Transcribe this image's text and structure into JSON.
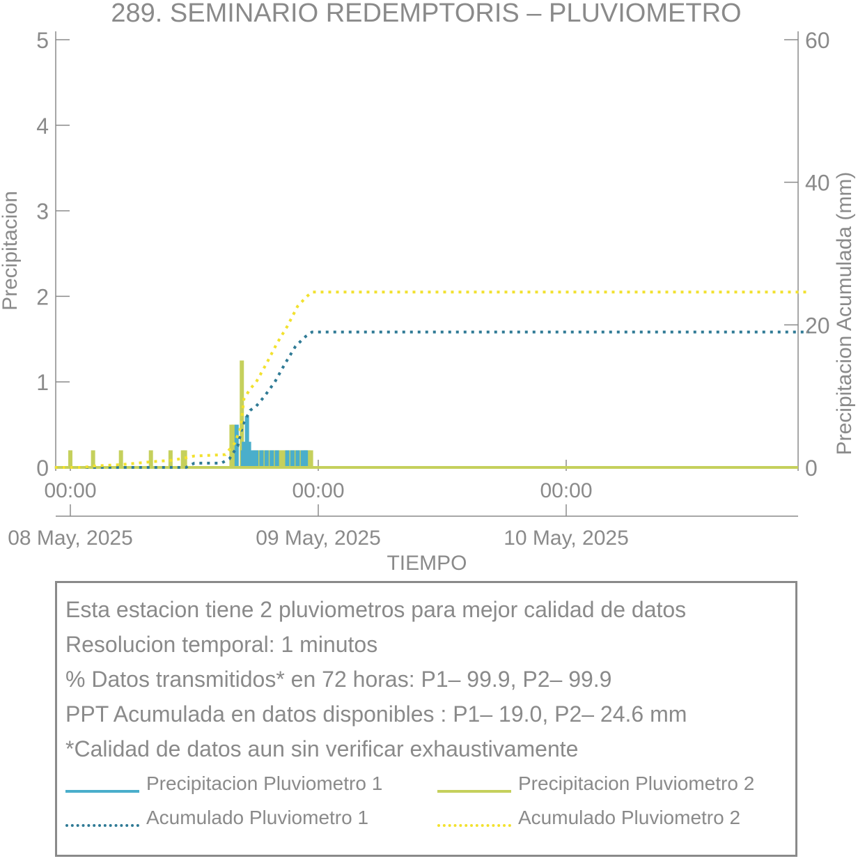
{
  "colors": {
    "p1": "#4aaecb",
    "p2": "#c5d05c",
    "acc1": "#2f7a95",
    "acc2": "#f2e12e",
    "axis": "#8a8a8a"
  },
  "chart_data": {
    "type": "bar",
    "title": "289. SEMINARIO REDEMPTORIS – PLUVIOMETRO",
    "xlabel": "TIEMPO",
    "ylabel": "Precipitacion",
    "y2label": "Precipitacion Acumulada (mm)",
    "x_range_hours": [
      0,
      72
    ],
    "ylim": [
      0,
      5
    ],
    "y2lim": [
      0,
      60
    ],
    "y_ticks": [
      0,
      1,
      2,
      3,
      4,
      5
    ],
    "y2_ticks": [
      0,
      20,
      40,
      60
    ],
    "x_ticks": [
      {
        "hour": 0,
        "time": "00:00",
        "date": "08 May, 2025"
      },
      {
        "hour": 24,
        "time": "00:00",
        "date": "09 May, 2025"
      },
      {
        "hour": 48,
        "time": "00:00",
        "date": "10 May, 2025"
      }
    ],
    "series": [
      {
        "name": "Precipitacion Pluviometro 1",
        "type": "bar",
        "axis": "left",
        "points": [
          [
            16.1,
            0.5
          ],
          [
            16.7,
            0.2
          ],
          [
            16.8,
            0.3
          ],
          [
            17.1,
            0.6
          ],
          [
            17.3,
            0.3
          ],
          [
            17.6,
            0.2
          ],
          [
            18.0,
            0.2
          ],
          [
            18.5,
            0.2
          ],
          [
            19.0,
            0.2
          ],
          [
            19.5,
            0.2
          ],
          [
            20.0,
            0.2
          ],
          [
            21.0,
            0.2
          ],
          [
            21.5,
            0.2
          ],
          [
            22.0,
            0.2
          ],
          [
            22.5,
            0.2
          ],
          [
            22.8,
            0.2
          ]
        ]
      },
      {
        "name": "Precipitacion Pluviometro 2",
        "type": "bar",
        "axis": "left",
        "points": [
          [
            0.0,
            0.2
          ],
          [
            2.2,
            0.2
          ],
          [
            4.9,
            0.2
          ],
          [
            7.8,
            0.2
          ],
          [
            9.7,
            0.2
          ],
          [
            10.9,
            0.2
          ],
          [
            11.1,
            0.2
          ],
          [
            15.6,
            0.5
          ],
          [
            15.8,
            0.5
          ],
          [
            16.6,
            1.25
          ],
          [
            16.9,
            0.2
          ],
          [
            17.8,
            0.2
          ],
          [
            18.2,
            0.2
          ],
          [
            18.6,
            0.2
          ],
          [
            19.0,
            0.2
          ],
          [
            19.4,
            0.2
          ],
          [
            19.8,
            0.2
          ],
          [
            20.2,
            0.2
          ],
          [
            20.6,
            0.2
          ],
          [
            21.0,
            0.2
          ],
          [
            21.4,
            0.2
          ],
          [
            21.8,
            0.2
          ],
          [
            22.2,
            0.2
          ],
          [
            22.6,
            0.2
          ],
          [
            23.0,
            0.2
          ],
          [
            23.3,
            0.2
          ]
        ]
      },
      {
        "name": "Acumulado Pluviometro 1",
        "type": "line",
        "style": "dotted",
        "axis": "right",
        "points": [
          [
            -1.5,
            0.0
          ],
          [
            11.2,
            0.0
          ],
          [
            12.0,
            0.6
          ],
          [
            14.6,
            0.6
          ],
          [
            15.4,
            1.2
          ],
          [
            16.2,
            3.0
          ],
          [
            16.7,
            6.0
          ],
          [
            17.4,
            8.0
          ],
          [
            18.0,
            8.6
          ],
          [
            18.8,
            10.0
          ],
          [
            19.8,
            12.0
          ],
          [
            20.8,
            14.6
          ],
          [
            21.8,
            17.0
          ],
          [
            22.8,
            18.4
          ],
          [
            23.4,
            19.0
          ],
          [
            71.5,
            19.0
          ]
        ]
      },
      {
        "name": "Acumulado Pluviometro 2",
        "type": "line",
        "style": "dotted",
        "axis": "right",
        "points": [
          [
            -1.5,
            0.0
          ],
          [
            1.2,
            0.0
          ],
          [
            2.3,
            0.2
          ],
          [
            5.0,
            0.4
          ],
          [
            7.9,
            0.8
          ],
          [
            9.8,
            1.0
          ],
          [
            11.0,
            1.3
          ],
          [
            12.0,
            1.6
          ],
          [
            15.0,
            1.8
          ],
          [
            15.9,
            3.4
          ],
          [
            16.5,
            5.6
          ],
          [
            16.8,
            9.6
          ],
          [
            17.4,
            11.0
          ],
          [
            18.0,
            12.0
          ],
          [
            19.0,
            14.6
          ],
          [
            20.0,
            17.4
          ],
          [
            21.0,
            19.8
          ],
          [
            22.0,
            22.6
          ],
          [
            22.9,
            24.0
          ],
          [
            23.4,
            24.6
          ],
          [
            71.5,
            24.6
          ]
        ]
      }
    ]
  },
  "info": {
    "lines": [
      "Esta estacion tiene 2 pluviometros para mejor calidad de datos",
      "Resolucion temporal: 1 minutos",
      "% Datos transmitidos* en 72 horas: P1– 99.9, P2– 99.9",
      "PPT Acumulada en datos disponibles : P1– 19.0, P2– 24.6 mm",
      "*Calidad de datos aun sin verificar exhaustivamente"
    ]
  },
  "legend": {
    "items": [
      "Precipitacion Pluviometro 1",
      "Precipitacion Pluviometro 2",
      "Acumulado Pluviometro 1",
      "Acumulado Pluviometro 2"
    ]
  }
}
